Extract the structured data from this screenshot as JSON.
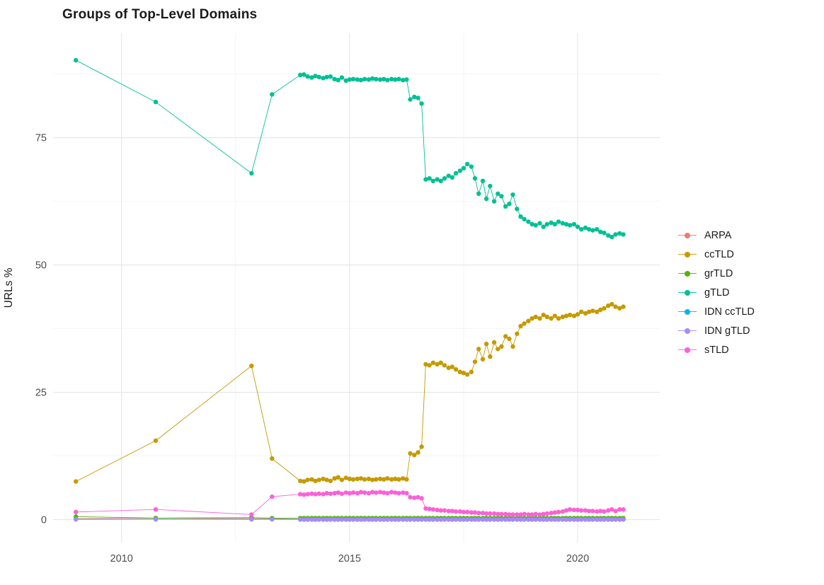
{
  "title": "Groups of Top-Level Domains",
  "chart_data": {
    "type": "line",
    "title": "Groups of Top-Level Domains",
    "xlabel": "",
    "ylabel": "URLs %",
    "x_ticks": [
      2010,
      2015,
      2020
    ],
    "y_ticks": [
      0,
      25,
      50,
      75
    ],
    "xlim": [
      2008.5,
      2021.8
    ],
    "ylim": [
      -4.5,
      95.5
    ],
    "grid": true,
    "legend_position": "right",
    "grid_major_color": "#e6e6e6",
    "grid_minor_color": "#f2f2f2",
    "x": [
      2009.0,
      2010.75,
      2012.85,
      2013.3,
      2013.92,
      2014.0,
      2014.08,
      2014.17,
      2014.25,
      2014.33,
      2014.42,
      2014.5,
      2014.58,
      2014.67,
      2014.75,
      2014.83,
      2014.92,
      2015.0,
      2015.08,
      2015.17,
      2015.25,
      2015.33,
      2015.42,
      2015.5,
      2015.58,
      2015.67,
      2015.75,
      2015.83,
      2015.92,
      2016.0,
      2016.08,
      2016.17,
      2016.25,
      2016.33,
      2016.42,
      2016.5,
      2016.58,
      2016.67,
      2016.75,
      2016.83,
      2016.92,
      2017.0,
      2017.08,
      2017.17,
      2017.25,
      2017.33,
      2017.42,
      2017.5,
      2017.58,
      2017.67,
      2017.75,
      2017.83,
      2017.92,
      2018.0,
      2018.08,
      2018.17,
      2018.25,
      2018.33,
      2018.42,
      2018.5,
      2018.58,
      2018.67,
      2018.75,
      2018.83,
      2018.92,
      2019.0,
      2019.08,
      2019.17,
      2019.25,
      2019.33,
      2019.42,
      2019.5,
      2019.58,
      2019.67,
      2019.75,
      2019.83,
      2019.92,
      2020.0,
      2020.08,
      2020.17,
      2020.25,
      2020.33,
      2020.42,
      2020.5,
      2020.58,
      2020.67,
      2020.75,
      2020.83,
      2020.92,
      2021.0
    ],
    "series": [
      {
        "name": "ARPA",
        "color": "#F8766D",
        "values": [
          0.2,
          0.3,
          0.2,
          0.2
        ],
        "pad": 0.1
      },
      {
        "name": "ccTLD",
        "color": "#C49A00",
        "values": [
          7.5,
          15.5,
          30.2,
          12.0,
          7.6,
          7.5,
          7.8,
          7.9,
          7.6,
          7.8,
          8.0,
          7.8,
          7.6,
          8.1,
          8.3,
          7.8,
          8.2,
          8.0,
          7.9,
          8.0,
          8.1,
          7.9,
          8.0,
          7.8,
          7.9,
          8.0,
          7.9,
          8.1,
          7.9,
          8.0,
          7.9,
          8.1,
          7.9,
          13.0,
          12.7,
          13.2,
          14.3,
          30.5,
          30.3,
          30.8,
          30.5,
          30.8,
          30.3,
          29.8,
          30.0,
          29.5,
          29.0,
          28.8,
          28.5,
          29.0,
          31.0,
          33.5,
          31.5,
          34.5,
          32.0,
          34.8,
          33.5,
          34.0,
          36.0,
          35.5,
          34.0,
          36.5,
          38.0,
          38.5,
          39.0,
          39.5,
          39.8,
          39.5,
          40.2,
          39.8,
          39.5,
          40.0,
          39.5,
          39.8,
          40.0,
          40.2,
          40.0,
          40.3,
          40.8,
          40.5,
          40.8,
          41.0,
          40.8,
          41.2,
          41.5,
          42.0,
          42.3,
          41.8,
          41.5,
          41.8
        ]
      },
      {
        "name": "grTLD",
        "color": "#53B400",
        "values": [
          0.6,
          0.3,
          0.4,
          0.3
        ],
        "pad": 0.3
      },
      {
        "name": "gTLD",
        "color": "#00C094",
        "values": [
          90.2,
          82.0,
          68.0,
          83.5,
          87.3,
          87.4,
          87.0,
          86.8,
          87.1,
          86.9,
          86.7,
          86.9,
          87.0,
          86.5,
          86.3,
          86.8,
          86.2,
          86.4,
          86.5,
          86.4,
          86.3,
          86.5,
          86.4,
          86.6,
          86.5,
          86.4,
          86.5,
          86.3,
          86.5,
          86.4,
          86.5,
          86.3,
          86.4,
          82.5,
          83.0,
          82.8,
          81.7,
          66.8,
          67.0,
          66.5,
          66.8,
          66.5,
          67.0,
          67.5,
          67.2,
          68.0,
          68.5,
          69.0,
          69.8,
          69.3,
          67.0,
          64.0,
          66.5,
          63.0,
          65.5,
          62.5,
          64.0,
          63.5,
          61.5,
          62.0,
          63.8,
          61.0,
          59.5,
          59.0,
          58.5,
          58.0,
          57.8,
          58.2,
          57.5,
          58.0,
          58.3,
          58.0,
          58.5,
          58.2,
          58.0,
          57.8,
          58.0,
          57.5,
          57.0,
          57.3,
          57.0,
          56.8,
          57.0,
          56.5,
          56.3,
          55.8,
          55.5,
          56.0,
          56.2,
          56.0
        ]
      },
      {
        "name": "IDN ccTLD",
        "color": "#00B6EB",
        "values": [
          0.1,
          0.1,
          0.1,
          0.1
        ],
        "pad": 0.05
      },
      {
        "name": "IDN gTLD",
        "color": "#A58AFF",
        "values": [
          0.05,
          0.05,
          0.05,
          0.05
        ],
        "pad": 0.02
      },
      {
        "name": "sTLD",
        "color": "#FB61D7",
        "values": [
          1.5,
          2.0,
          1.0,
          4.5,
          5.0,
          4.9,
          5.0,
          5.1,
          5.0,
          5.1,
          5.0,
          5.2,
          5.1,
          5.2,
          5.3,
          5.1,
          5.3,
          5.2,
          5.3,
          5.2,
          5.4,
          5.3,
          5.2,
          5.4,
          5.3,
          5.4,
          5.3,
          5.2,
          5.4,
          5.3,
          5.2,
          5.3,
          5.2,
          4.4,
          4.3,
          4.4,
          4.2,
          2.2,
          2.1,
          2.0,
          1.9,
          1.8,
          1.8,
          1.7,
          1.7,
          1.6,
          1.6,
          1.5,
          1.5,
          1.4,
          1.4,
          1.3,
          1.3,
          1.2,
          1.2,
          1.2,
          1.1,
          1.1,
          1.1,
          1.0,
          1.0,
          1.0,
          1.0,
          1.1,
          1.0,
          1.0,
          1.1,
          1.0,
          1.1,
          1.2,
          1.3,
          1.4,
          1.5,
          1.6,
          1.8,
          2.0,
          1.9,
          1.9,
          1.8,
          1.8,
          1.7,
          1.7,
          1.6,
          1.7,
          1.6,
          1.8,
          2.0,
          1.7,
          2.0,
          2.0
        ]
      }
    ]
  }
}
